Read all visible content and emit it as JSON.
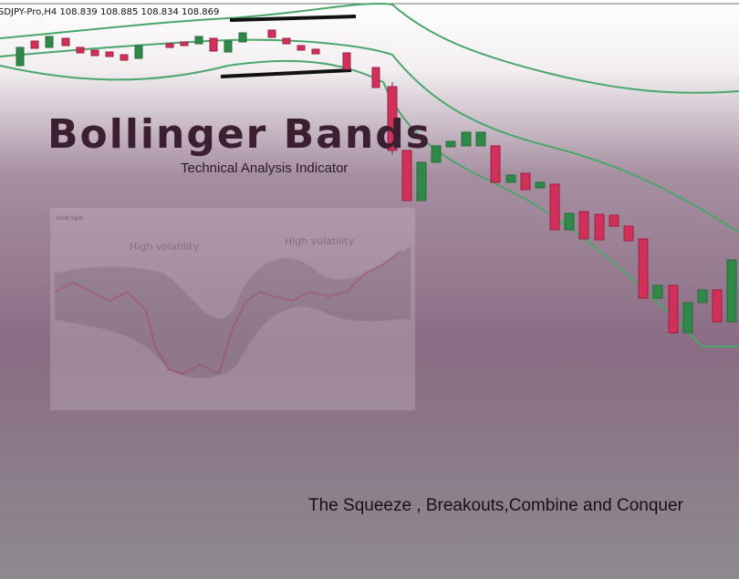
{
  "header": {
    "ticker": "SDJPY-Pro,H4  108.839 108.885 108.834 108.869"
  },
  "title": "Bollinger Bands",
  "subtitle": "Technical Analysis Indicator",
  "inset": {
    "title": "Gold Spot",
    "labels": [
      "High volatility",
      "High volatility",
      "Lower volatility",
      "Lower volatility"
    ]
  },
  "caption": "The Squeeze , Breakouts,Combine and Conquer"
}
